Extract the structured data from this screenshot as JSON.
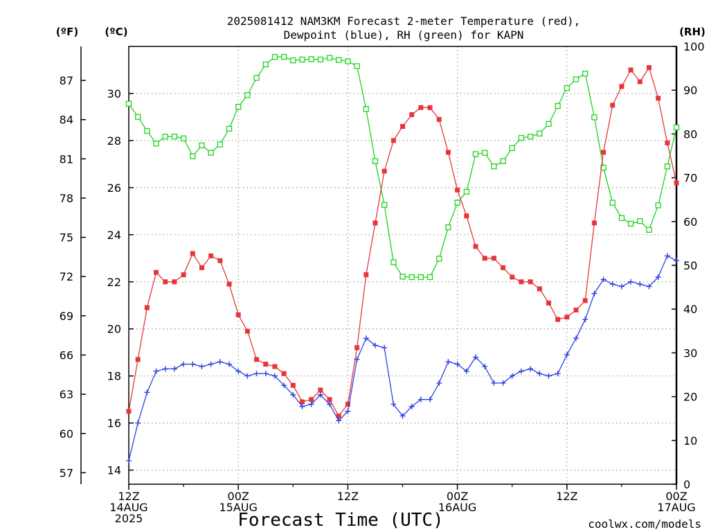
{
  "colors": {
    "temperature": "#e8343a",
    "dewpoint": "#2d3fe0",
    "rh": "#1ed21e",
    "grid": "#9a9a9a",
    "axis": "#000000",
    "credit": "#e8343a"
  },
  "chart_data": {
    "type": "line",
    "title": "2025081412 NAM3KM Forecast 2-meter Temperature (red),",
    "title_line2": "Dewpoint (blue), RH (green) for KAPN",
    "xlabel": "Forecast Time (UTC)",
    "credit": "coolwx.com/models",
    "x_ticks": [
      {
        "h": 0,
        "l1": "12Z",
        "l2": "14AUG",
        "l3": "2025"
      },
      {
        "h": 12,
        "l1": "00Z",
        "l2": "15AUG",
        "l3": ""
      },
      {
        "h": 24,
        "l1": "12Z",
        "l2": "",
        "l3": ""
      },
      {
        "h": 36,
        "l1": "00Z",
        "l2": "16AUG",
        "l3": ""
      },
      {
        "h": 48,
        "l1": "12Z",
        "l2": "",
        "l3": ""
      },
      {
        "h": 60,
        "l1": "00Z",
        "l2": "17AUG",
        "l3": ""
      }
    ],
    "xlim": [
      0,
      60
    ],
    "x_step_hours": 1,
    "y_left_c": {
      "label": "(ºC)",
      "ylim": [
        13.4,
        32
      ],
      "ticks": [
        14,
        16,
        18,
        20,
        22,
        24,
        26,
        28,
        30
      ]
    },
    "y_left_f": {
      "label": "(ºF)",
      "ticks": [
        57,
        60,
        63,
        66,
        69,
        72,
        75,
        78,
        81,
        84,
        87
      ]
    },
    "y_right_rh": {
      "label": "(RH)",
      "ylim": [
        0,
        100
      ],
      "ticks": [
        0,
        10,
        20,
        30,
        40,
        50,
        60,
        70,
        80,
        90,
        100
      ]
    },
    "grid": true,
    "series": [
      {
        "name": "Temperature",
        "axis": "c",
        "marker": "filled-square",
        "values": [
          16.5,
          18.7,
          20.9,
          22.4,
          22.0,
          22.0,
          22.3,
          23.2,
          22.6,
          23.1,
          22.9,
          21.9,
          20.6,
          19.9,
          18.7,
          18.5,
          18.4,
          18.1,
          17.6,
          16.9,
          17.0,
          17.4,
          17.0,
          16.3,
          16.8,
          19.2,
          22.3,
          24.5,
          26.7,
          28.0,
          28.6,
          29.1,
          29.4,
          29.4,
          28.9,
          27.5,
          25.9,
          24.8,
          23.5,
          23.0,
          23.0,
          22.6,
          22.2,
          22.0,
          22.0,
          21.7,
          21.1,
          20.4,
          20.5,
          20.8,
          21.2,
          24.5,
          27.5,
          29.5,
          30.3,
          31.0,
          30.5,
          31.1,
          29.8,
          27.9,
          26.2
        ]
      },
      {
        "name": "Dewpoint",
        "axis": "c",
        "marker": "plus",
        "values": [
          14.4,
          16.0,
          17.3,
          18.2,
          18.3,
          18.3,
          18.5,
          18.5,
          18.4,
          18.5,
          18.6,
          18.5,
          18.2,
          18.0,
          18.1,
          18.1,
          18.0,
          17.6,
          17.2,
          16.7,
          16.8,
          17.2,
          16.8,
          16.1,
          16.5,
          18.7,
          19.6,
          19.3,
          19.2,
          16.8,
          16.3,
          16.7,
          17.0,
          17.0,
          17.7,
          18.6,
          18.5,
          18.2,
          18.8,
          18.4,
          17.7,
          17.7,
          18.0,
          18.2,
          18.3,
          18.1,
          18.0,
          18.1,
          18.9,
          19.6,
          20.4,
          21.5,
          22.1,
          21.9,
          21.8,
          22.0,
          21.9,
          21.8,
          22.2,
          23.1,
          22.9
        ]
      },
      {
        "name": "RH",
        "axis": "rh",
        "marker": "open-square",
        "values": [
          86.9,
          83.9,
          80.7,
          77.8,
          79.4,
          79.4,
          79.0,
          74.9,
          77.4,
          75.7,
          77.6,
          81.2,
          86.2,
          88.9,
          92.8,
          95.9,
          97.6,
          97.6,
          96.8,
          97.0,
          97.1,
          97.0,
          97.4,
          96.9,
          96.6,
          95.5,
          85.7,
          73.8,
          63.8,
          50.7,
          47.4,
          47.3,
          47.3,
          47.3,
          51.5,
          58.7,
          64.3,
          66.8,
          75.4,
          75.7,
          72.6,
          73.8,
          76.8,
          79.1,
          79.4,
          80.1,
          82.3,
          86.4,
          90.5,
          92.5,
          93.8,
          83.8,
          72.3,
          64.3,
          60.8,
          59.5,
          60.1,
          58.1,
          63.7,
          72.6,
          81.5
        ]
      }
    ]
  }
}
